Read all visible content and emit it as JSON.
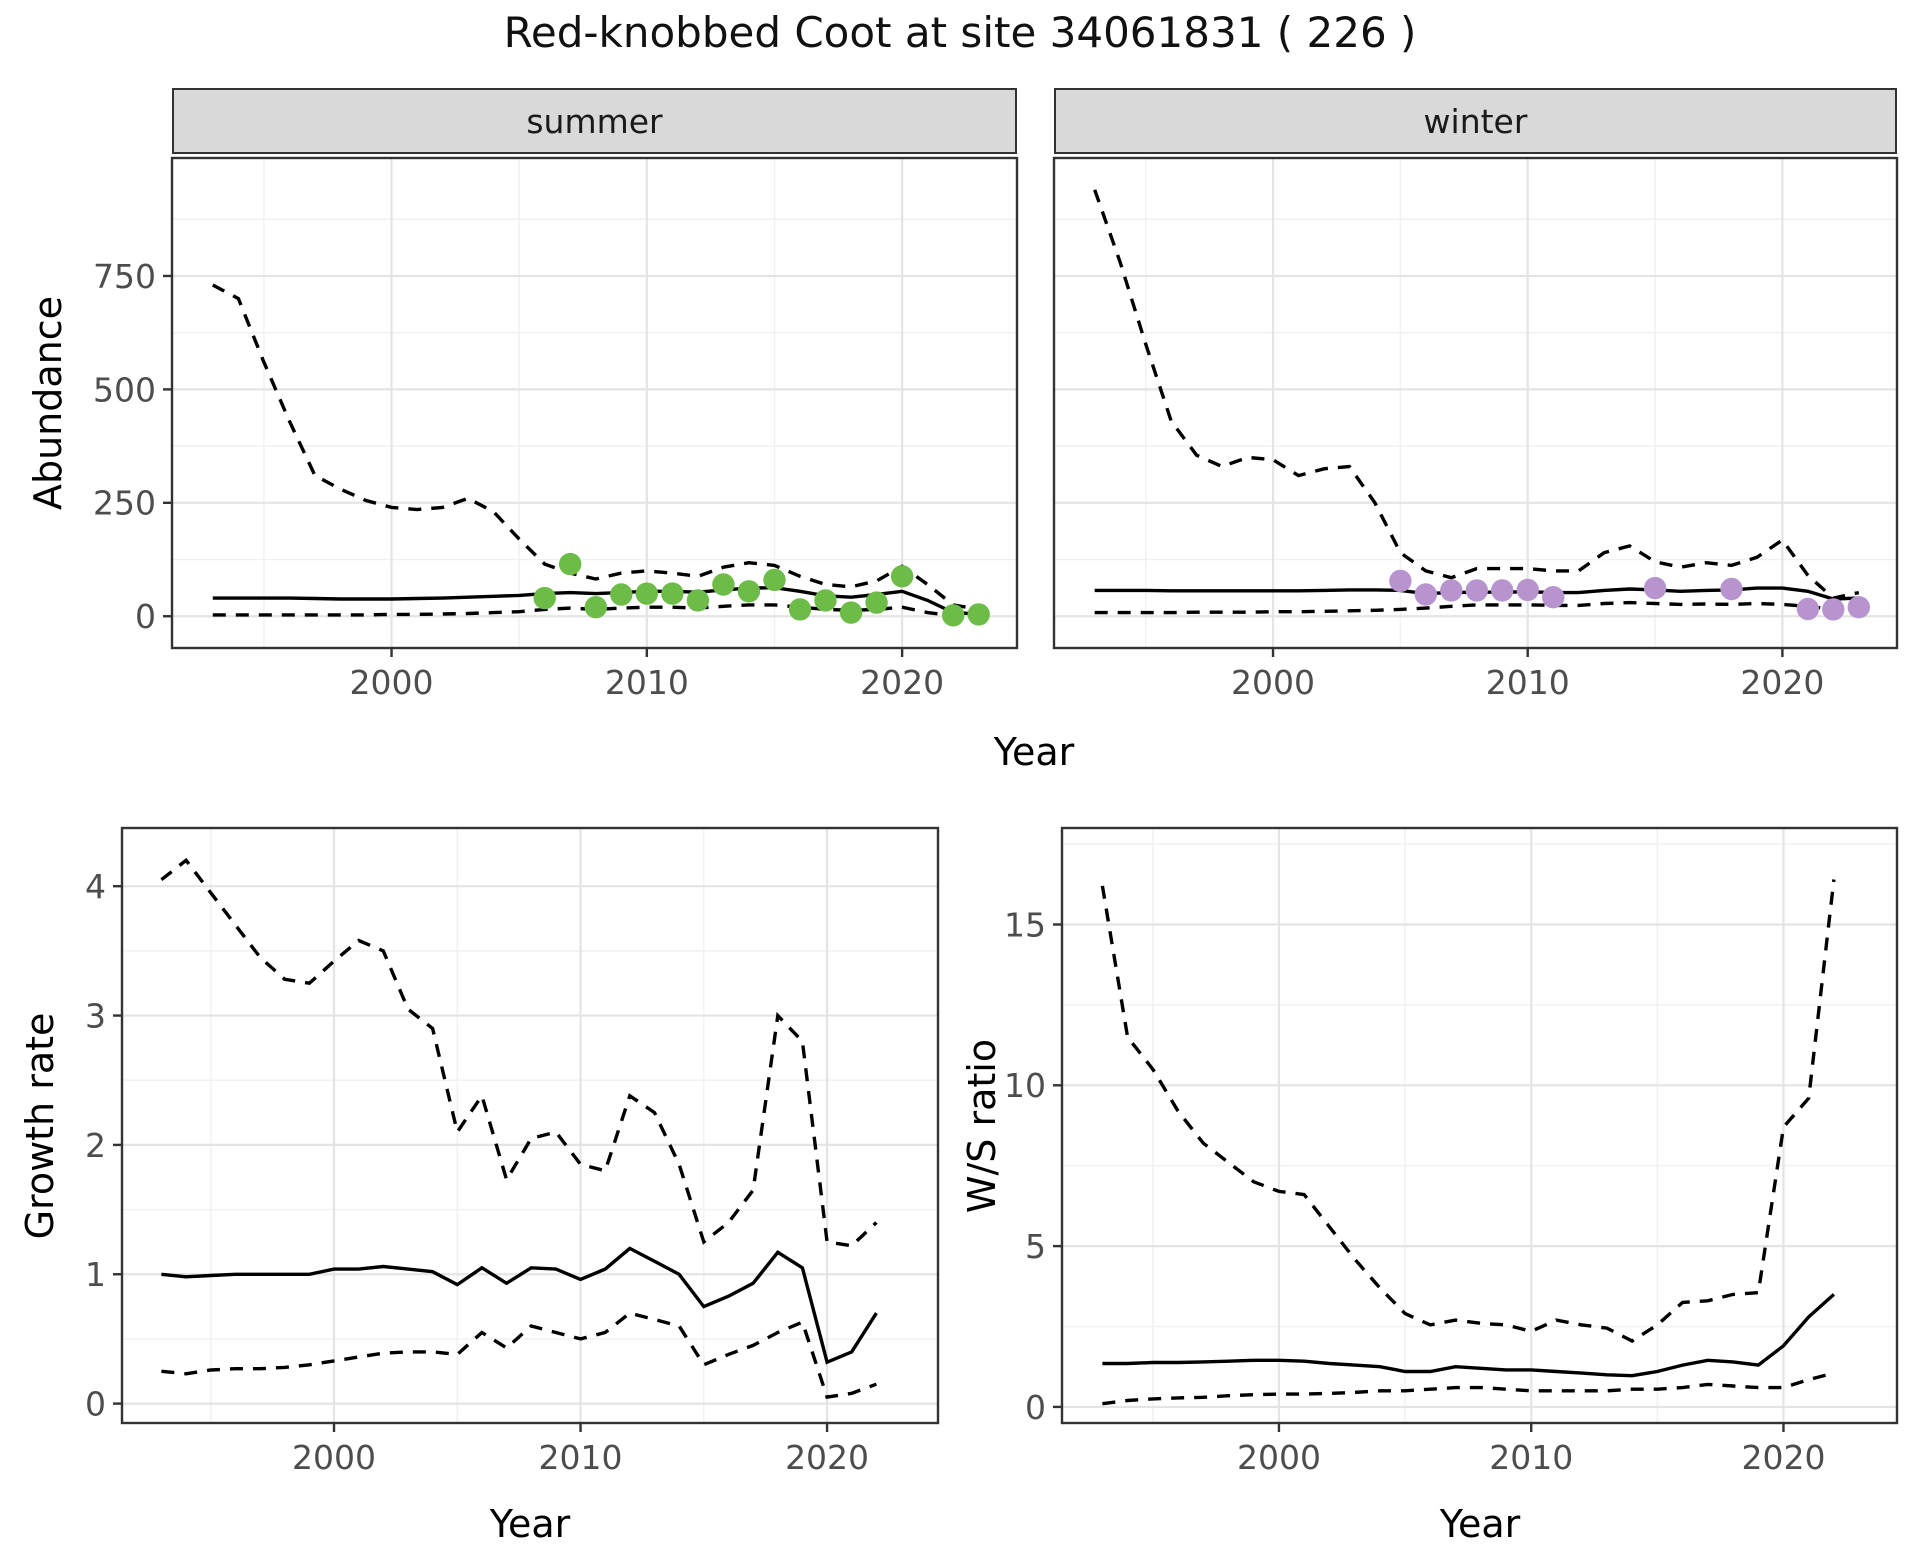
{
  "title": "Red-knobbed Coot at site 34061831 ( 226 )",
  "labels": {
    "abundance": "Abundance",
    "year": "Year",
    "growth_rate": "Growth rate",
    "ws_ratio": "W/S ratio",
    "facet_summer": "summer",
    "facet_winter": "winter"
  },
  "colors": {
    "summer_points": "#6cbc47",
    "winter_points": "#b894ce",
    "line": "#000000",
    "strip_fill": "#d9d9d9",
    "panel_border": "#333333",
    "grid_major": "#e4e4e4",
    "grid_minor": "#f1f1f1",
    "tick_text": "#4d4d4d"
  },
  "chart_data": [
    {
      "id": "abundance_summer",
      "type": "line",
      "facet": "summer",
      "xlabel": "Year",
      "ylabel": "Abundance",
      "xlim": [
        1991.4,
        2024.5
      ],
      "ylim": [
        -70,
        1010
      ],
      "xticks": [
        2000,
        2010,
        2020
      ],
      "yticks": [
        0,
        250,
        500,
        750
      ],
      "grid": true,
      "legend": "none",
      "x": [
        1993,
        1994,
        1995,
        1996,
        1997,
        1998,
        1999,
        2000,
        2001,
        2002,
        2003,
        2004,
        2005,
        2006,
        2007,
        2008,
        2009,
        2010,
        2011,
        2012,
        2013,
        2014,
        2015,
        2016,
        2017,
        2018,
        2019,
        2020,
        2021,
        2022,
        2023
      ],
      "series": [
        {
          "name": "upper-ci",
          "style": "dashed",
          "values": [
            730,
            700,
            560,
            430,
            310,
            280,
            255,
            240,
            235,
            240,
            260,
            230,
            170,
            115,
            95,
            82,
            95,
            100,
            95,
            88,
            108,
            118,
            112,
            88,
            70,
            65,
            78,
            110,
            70,
            25,
            15
          ]
        },
        {
          "name": "median",
          "style": "solid",
          "values": [
            40,
            40,
            40,
            40,
            39,
            38,
            38,
            38,
            39,
            40,
            42,
            44,
            46,
            50,
            52,
            50,
            52,
            55,
            55,
            53,
            58,
            62,
            63,
            55,
            45,
            42,
            48,
            55,
            35,
            8,
            5
          ]
        },
        {
          "name": "lower-ci",
          "style": "dashed",
          "values": [
            3,
            3,
            3,
            3,
            3,
            3,
            3,
            4,
            4,
            5,
            6,
            8,
            10,
            15,
            18,
            15,
            18,
            20,
            20,
            18,
            22,
            25,
            25,
            20,
            15,
            13,
            15,
            20,
            8,
            1,
            0
          ]
        }
      ],
      "points": {
        "name": "observed-summer-counts",
        "color": "#6cbc47",
        "x": [
          2006,
          2007,
          2008,
          2009,
          2010,
          2011,
          2012,
          2013,
          2014,
          2015,
          2016,
          2017,
          2018,
          2019,
          2020,
          2022,
          2023
        ],
        "y": [
          40,
          115,
          20,
          48,
          50,
          50,
          35,
          70,
          55,
          80,
          15,
          35,
          8,
          30,
          88,
          2,
          4
        ]
      }
    },
    {
      "id": "abundance_winter",
      "type": "line",
      "facet": "winter",
      "xlabel": "Year",
      "ylabel": "Abundance",
      "xlim": [
        1991.4,
        2024.5
      ],
      "ylim": [
        -70,
        1010
      ],
      "xticks": [
        2000,
        2010,
        2020
      ],
      "yticks": [
        0,
        250,
        500,
        750
      ],
      "grid": true,
      "legend": "none",
      "x": [
        1993,
        1994,
        1995,
        1996,
        1997,
        1998,
        1999,
        2000,
        2001,
        2002,
        2003,
        2004,
        2005,
        2006,
        2007,
        2008,
        2009,
        2010,
        2011,
        2012,
        2013,
        2014,
        2015,
        2016,
        2017,
        2018,
        2019,
        2020,
        2021,
        2022,
        2023
      ],
      "series": [
        {
          "name": "upper-ci",
          "style": "dashed",
          "values": [
            940,
            780,
            600,
            430,
            355,
            330,
            350,
            345,
            310,
            325,
            330,
            250,
            140,
            100,
            85,
            105,
            105,
            105,
            100,
            100,
            140,
            155,
            120,
            108,
            118,
            112,
            130,
            168,
            90,
            40,
            52
          ]
        },
        {
          "name": "median",
          "style": "solid",
          "values": [
            57,
            57,
            57,
            56,
            56,
            56,
            56,
            56,
            56,
            57,
            58,
            58,
            57,
            50,
            52,
            53,
            53,
            54,
            52,
            52,
            57,
            60,
            58,
            55,
            57,
            58,
            62,
            62,
            55,
            38,
            40
          ]
        },
        {
          "name": "lower-ci",
          "style": "dashed",
          "values": [
            8,
            8,
            8,
            8,
            9,
            9,
            9,
            10,
            10,
            11,
            12,
            13,
            15,
            18,
            22,
            25,
            25,
            25,
            24,
            24,
            28,
            30,
            28,
            26,
            27,
            26,
            28,
            26,
            22,
            15,
            18
          ]
        }
      ],
      "points": {
        "name": "observed-winter-counts",
        "color": "#b894ce",
        "x": [
          2005,
          2006,
          2007,
          2008,
          2009,
          2010,
          2011,
          2015,
          2018,
          2021,
          2022,
          2023
        ],
        "y": [
          78,
          48,
          57,
          57,
          57,
          58,
          42,
          62,
          60,
          16,
          15,
          20
        ]
      }
    },
    {
      "id": "growth_rate",
      "type": "line",
      "facet": null,
      "xlabel": "Year",
      "ylabel": "Growth rate",
      "xlim": [
        1991.4,
        2024.5
      ],
      "ylim": [
        -0.15,
        4.45
      ],
      "xticks": [
        2000,
        2010,
        2020
      ],
      "yticks": [
        0,
        1,
        2,
        3,
        4
      ],
      "grid": true,
      "legend": "none",
      "x": [
        1993,
        1994,
        1995,
        1996,
        1997,
        1998,
        1999,
        2000,
        2001,
        2002,
        2003,
        2004,
        2005,
        2006,
        2007,
        2008,
        2009,
        2010,
        2011,
        2012,
        2013,
        2014,
        2015,
        2016,
        2017,
        2018,
        2019,
        2020,
        2021,
        2022
      ],
      "series": [
        {
          "name": "upper-ci",
          "style": "dashed",
          "values": [
            4.05,
            4.2,
            3.95,
            3.7,
            3.45,
            3.28,
            3.25,
            3.42,
            3.58,
            3.5,
            3.05,
            2.9,
            2.1,
            2.38,
            1.73,
            2.05,
            2.1,
            1.85,
            1.8,
            2.38,
            2.25,
            1.85,
            1.25,
            1.4,
            1.65,
            3.0,
            2.8,
            1.25,
            1.22,
            1.4
          ]
        },
        {
          "name": "median",
          "style": "solid",
          "values": [
            1.0,
            0.98,
            0.99,
            1.0,
            1.0,
            1.0,
            1.0,
            1.04,
            1.04,
            1.06,
            1.04,
            1.02,
            0.92,
            1.05,
            0.93,
            1.05,
            1.04,
            0.96,
            1.04,
            1.2,
            1.1,
            1.0,
            0.75,
            0.83,
            0.93,
            1.17,
            1.05,
            0.32,
            0.4,
            0.7
          ]
        },
        {
          "name": "lower-ci",
          "style": "dashed",
          "values": [
            0.25,
            0.23,
            0.26,
            0.27,
            0.27,
            0.28,
            0.3,
            0.33,
            0.36,
            0.39,
            0.4,
            0.4,
            0.38,
            0.55,
            0.43,
            0.6,
            0.55,
            0.5,
            0.55,
            0.7,
            0.65,
            0.6,
            0.3,
            0.38,
            0.45,
            0.55,
            0.63,
            0.05,
            0.08,
            0.15
          ]
        }
      ],
      "points": null
    },
    {
      "id": "ws_ratio",
      "type": "line",
      "facet": null,
      "xlabel": "Year",
      "ylabel": "W/S ratio",
      "xlim": [
        1991.4,
        2024.5
      ],
      "ylim": [
        -0.5,
        18.0
      ],
      "xticks": [
        2000,
        2010,
        2020
      ],
      "yticks": [
        0,
        5,
        10,
        15
      ],
      "grid": true,
      "legend": "none",
      "x": [
        1993,
        1994,
        1995,
        1996,
        1997,
        1998,
        1999,
        2000,
        2001,
        2002,
        2003,
        2004,
        2005,
        2006,
        2007,
        2008,
        2009,
        2010,
        2011,
        2012,
        2013,
        2014,
        2015,
        2016,
        2017,
        2018,
        2019,
        2020,
        2021,
        2022
      ],
      "series": [
        {
          "name": "upper-ci",
          "style": "dashed",
          "values": [
            16.2,
            11.5,
            10.5,
            9.2,
            8.2,
            7.6,
            7.0,
            6.7,
            6.6,
            5.6,
            4.6,
            3.7,
            2.9,
            2.55,
            2.7,
            2.6,
            2.55,
            2.35,
            2.7,
            2.55,
            2.45,
            2.05,
            2.55,
            3.25,
            3.3,
            3.5,
            3.55,
            8.7,
            9.6,
            16.4
          ]
        },
        {
          "name": "median",
          "style": "solid",
          "values": [
            1.35,
            1.35,
            1.38,
            1.38,
            1.4,
            1.42,
            1.45,
            1.45,
            1.42,
            1.35,
            1.3,
            1.25,
            1.1,
            1.1,
            1.25,
            1.2,
            1.15,
            1.15,
            1.1,
            1.05,
            1.0,
            0.97,
            1.1,
            1.3,
            1.45,
            1.4,
            1.3,
            1.9,
            2.8,
            3.5
          ]
        },
        {
          "name": "lower-ci",
          "style": "dashed",
          "values": [
            0.1,
            0.2,
            0.25,
            0.28,
            0.3,
            0.35,
            0.38,
            0.4,
            0.4,
            0.42,
            0.45,
            0.5,
            0.5,
            0.55,
            0.6,
            0.6,
            0.55,
            0.5,
            0.5,
            0.5,
            0.5,
            0.55,
            0.55,
            0.6,
            0.7,
            0.65,
            0.6,
            0.6,
            0.85,
            1.05
          ]
        }
      ],
      "points": null
    }
  ]
}
